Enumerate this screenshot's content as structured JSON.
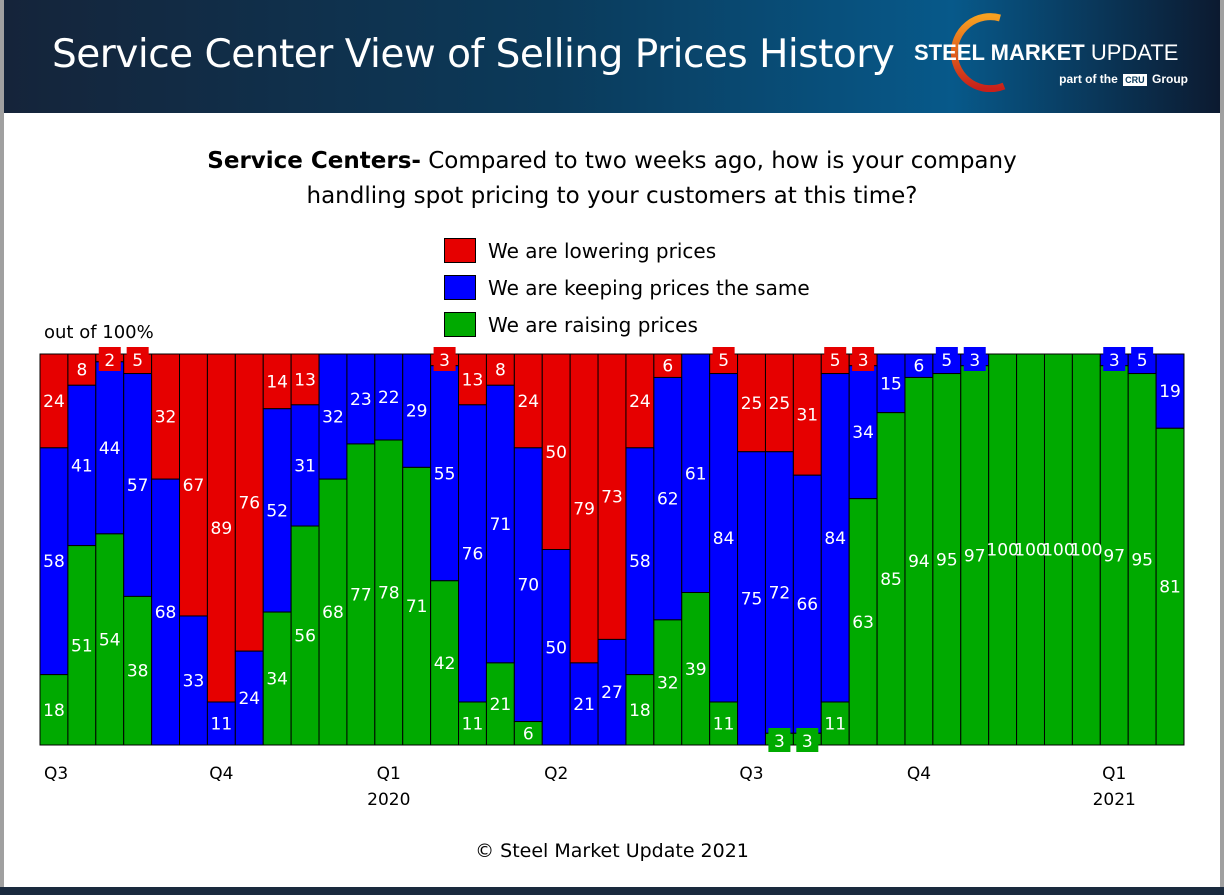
{
  "header": {
    "title": "Service Center View of Selling Prices History",
    "logo_text_bold": "STEEL MARKET",
    "logo_text": "UPDATE",
    "logo_sub_pre": "part of the",
    "logo_sub_badge": "CRU",
    "logo_sub_post": "Group"
  },
  "question": {
    "bold": "Service Centers-",
    "line1": " Compared to two weeks ago, how is your company",
    "line2": "handling spot pricing to your customers at this time?"
  },
  "copyright": "© Steel Market Update 2021",
  "colors": {
    "lowering": "#e60000",
    "same": "#0000ff",
    "raising": "#00aa00"
  },
  "chart_data": {
    "type": "bar",
    "stacked": true,
    "ylim": [
      0,
      100
    ],
    "ylabel": "out of 100%",
    "grid": false,
    "legend_placement": "top-center",
    "series": [
      {
        "name": "We are lowering prices",
        "values": [
          24,
          8,
          2,
          5,
          32,
          67,
          89,
          76,
          14,
          13,
          0,
          0,
          0,
          0,
          3,
          13,
          8,
          24,
          50,
          79,
          73,
          24,
          6,
          0,
          5,
          25,
          25,
          31,
          5,
          3,
          0,
          0,
          0,
          0,
          0,
          0,
          0,
          0,
          0,
          0,
          0
        ]
      },
      {
        "name": "We are keeping prices the same",
        "values": [
          58,
          41,
          44,
          57,
          68,
          33,
          11,
          24,
          52,
          31,
          32,
          23,
          22,
          29,
          55,
          76,
          71,
          70,
          50,
          21,
          27,
          58,
          62,
          61,
          84,
          75,
          72,
          66,
          84,
          34,
          15,
          6,
          5,
          3,
          0,
          0,
          0,
          0,
          3,
          5,
          19
        ]
      },
      {
        "name": "We are raising prices",
        "values": [
          18,
          51,
          54,
          38,
          0,
          0,
          0,
          0,
          34,
          56,
          68,
          77,
          78,
          71,
          42,
          11,
          21,
          6,
          0,
          0,
          0,
          18,
          32,
          39,
          11,
          0,
          3,
          3,
          11,
          63,
          85,
          94,
          95,
          97,
          100,
          100,
          100,
          100,
          97,
          95,
          81
        ]
      }
    ],
    "x_ticks": [
      {
        "bar": 0,
        "label": "Q3",
        "year": ""
      },
      {
        "bar": 6,
        "label": "Q4",
        "year": ""
      },
      {
        "bar": 12,
        "label": "Q1",
        "year": "2020"
      },
      {
        "bar": 18,
        "label": "Q2",
        "year": ""
      },
      {
        "bar": 25,
        "label": "Q3",
        "year": ""
      },
      {
        "bar": 31,
        "label": "Q4",
        "year": ""
      },
      {
        "bar": 38,
        "label": "Q1",
        "year": "2021"
      }
    ]
  }
}
